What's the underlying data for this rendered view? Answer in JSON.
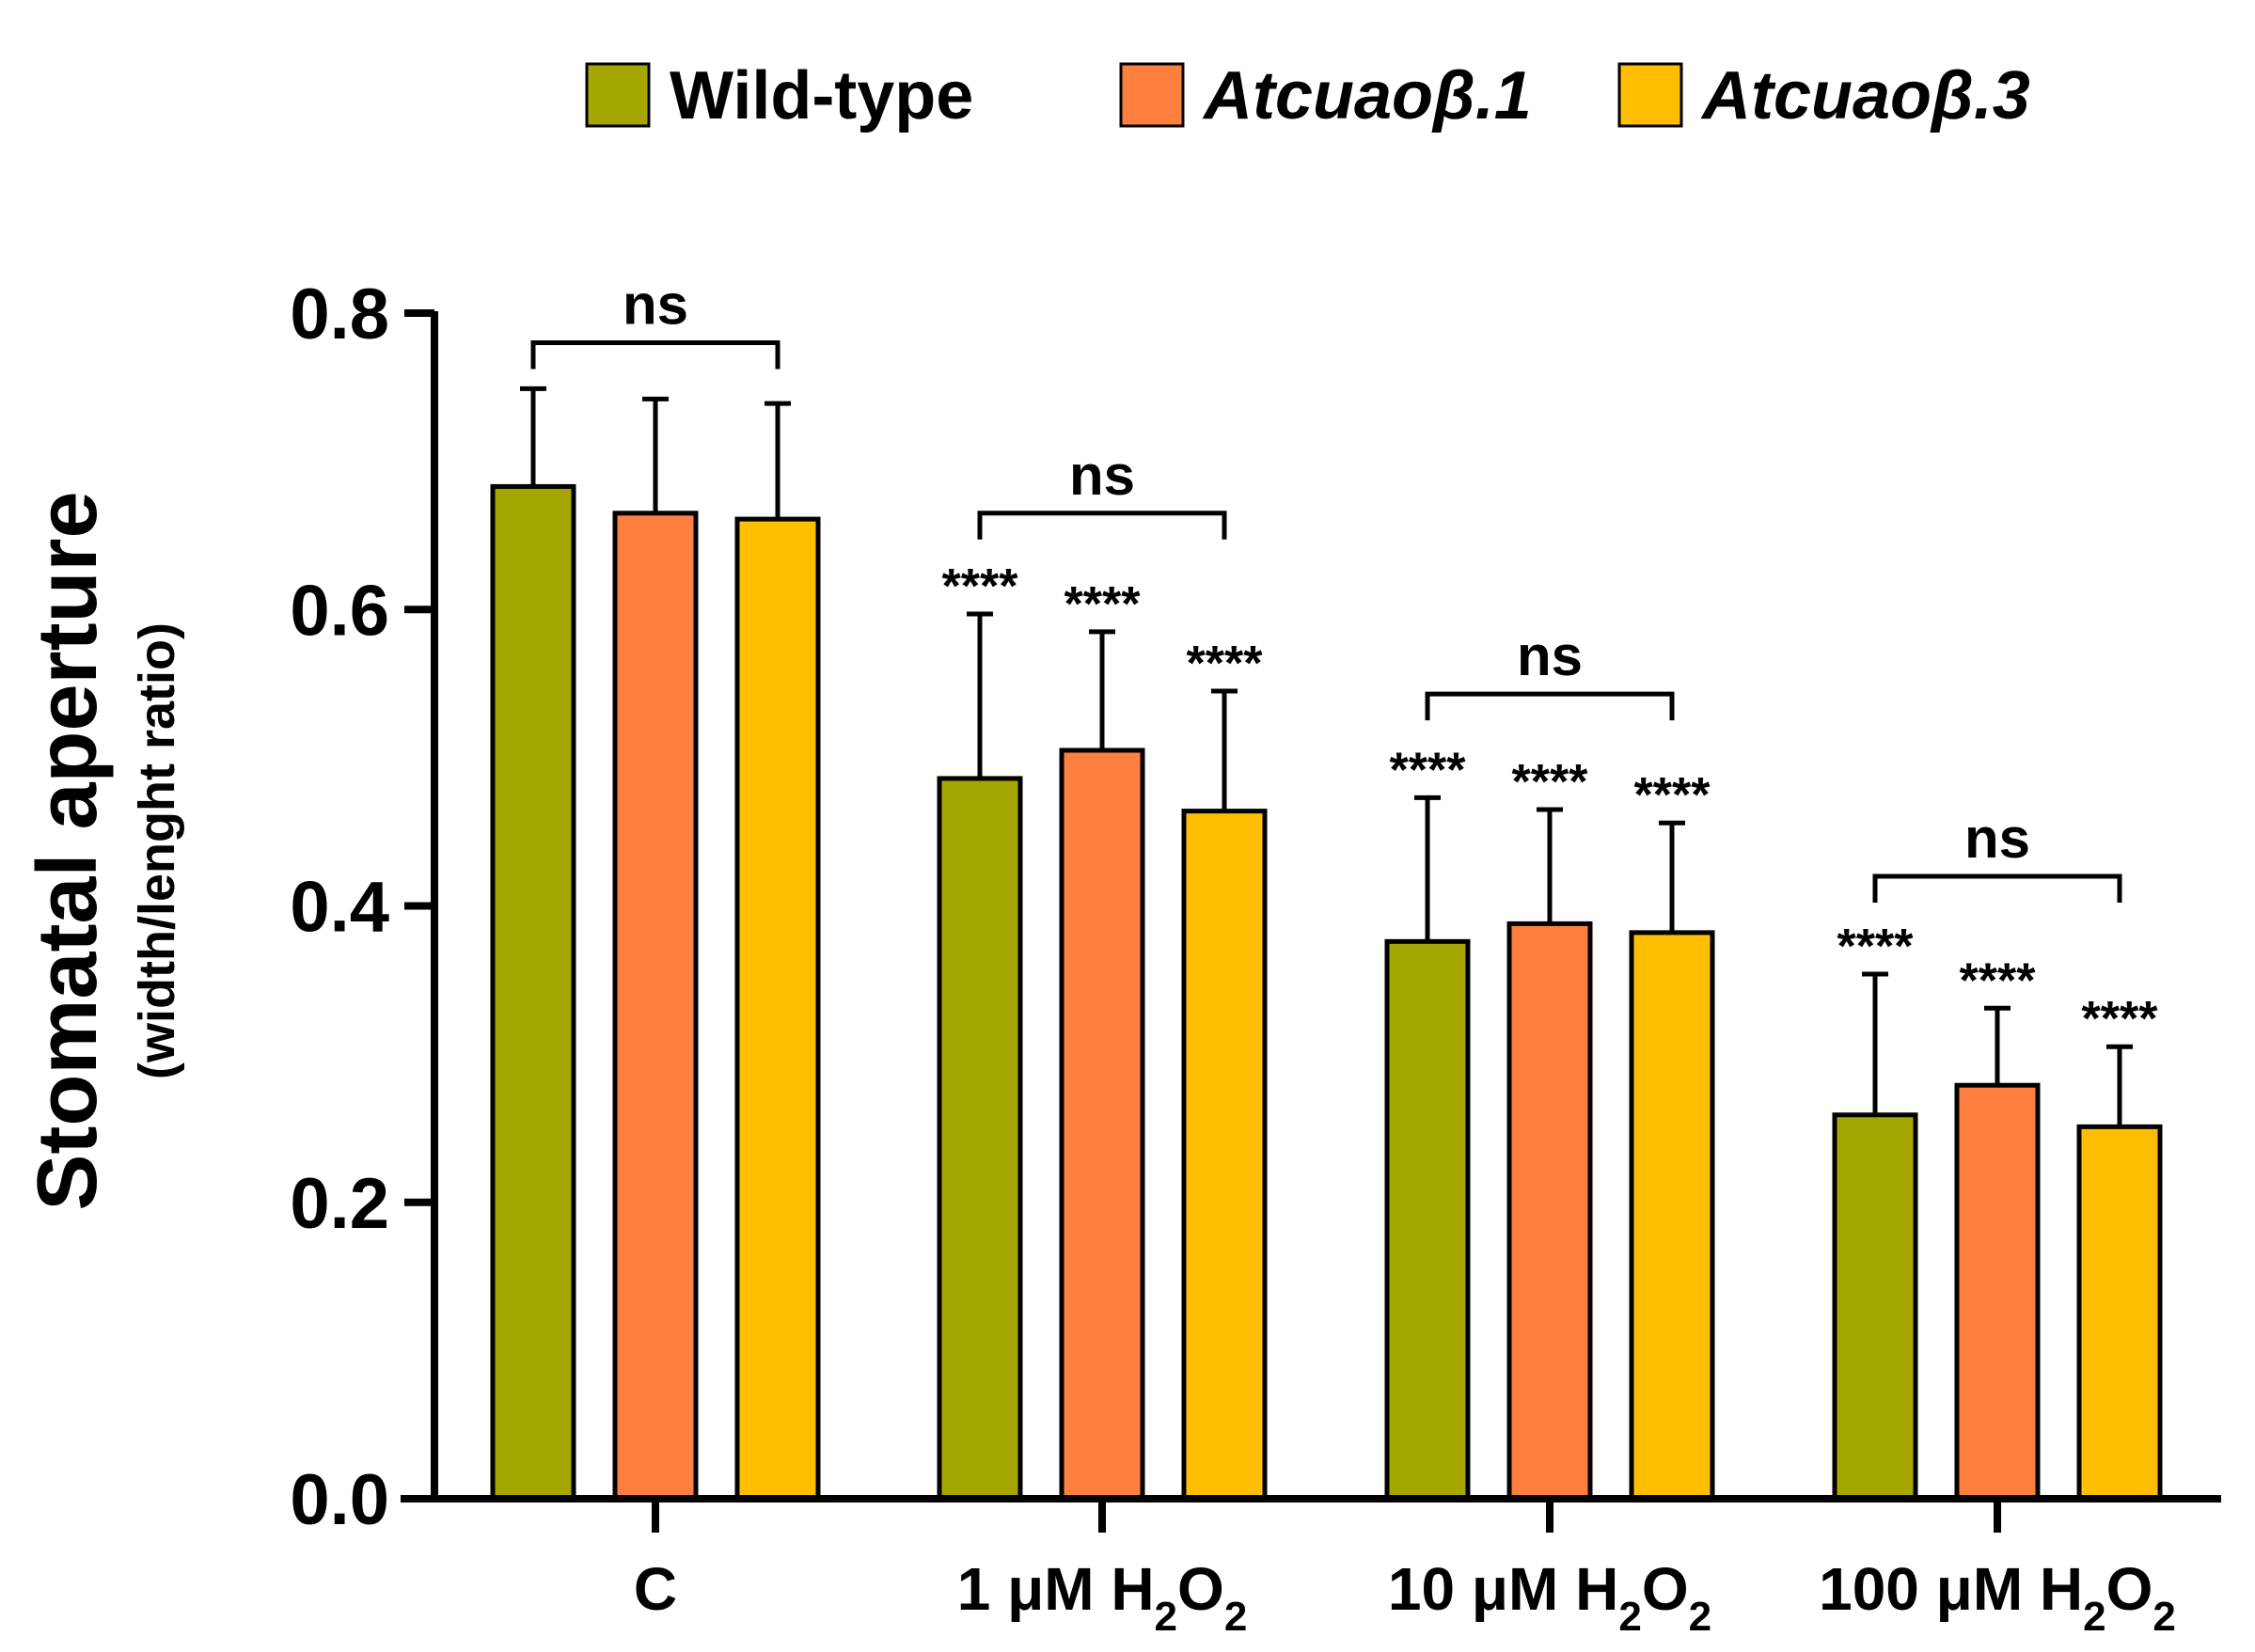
{
  "chart_data": {
    "type": "bar",
    "title": "",
    "ylabel": "Stomatal aperture",
    "ylabel_sub": "(width/lenght ratio)",
    "xlabel": "",
    "ylim": [
      0,
      0.8
    ],
    "yticks": [
      "0.0",
      "0.2",
      "0.4",
      "0.6",
      "0.8"
    ],
    "yticks_values": [
      0,
      0.2,
      0.4,
      0.6,
      0.8
    ],
    "grid": false,
    "legend_position": "top",
    "categories": [
      {
        "prefix": "C",
        "sub": "",
        "suffix": ""
      },
      {
        "prefix": "1 μM H",
        "sub": "2",
        "suffix": "O",
        "sub2": "2"
      },
      {
        "prefix": "10 μM H",
        "sub": "2",
        "suffix": "O",
        "sub2": "2"
      },
      {
        "prefix": "100 μM H",
        "sub": "2",
        "suffix": "O",
        "sub2": "2"
      }
    ],
    "series": [
      {
        "name": "Wild-type",
        "italic": false,
        "color": "#A6A600",
        "values": [
          0.683,
          0.486,
          0.376,
          0.259
        ],
        "errors": [
          0.066,
          0.111,
          0.097,
          0.095
        ],
        "sig": [
          "",
          "****",
          "****",
          "****"
        ]
      },
      {
        "name": "Atcuaoβ.1",
        "italic": true,
        "color": "#FF7F40",
        "values": [
          0.665,
          0.505,
          0.388,
          0.279
        ],
        "errors": [
          0.077,
          0.08,
          0.077,
          0.052
        ],
        "sig": [
          "",
          "****",
          "****",
          "****"
        ]
      },
      {
        "name": "Atcuaoβ.3",
        "italic": true,
        "color": "#FFBF00",
        "values": [
          0.661,
          0.464,
          0.382,
          0.251
        ],
        "errors": [
          0.078,
          0.081,
          0.074,
          0.054
        ],
        "sig": [
          "",
          "****",
          "****",
          "****"
        ]
      }
    ],
    "brackets": [
      {
        "label": "ns",
        "y": 0.78
      },
      {
        "label": "ns",
        "y": 0.665
      },
      {
        "label": "ns",
        "y": 0.543
      },
      {
        "label": "ns",
        "y": 0.42
      }
    ]
  }
}
